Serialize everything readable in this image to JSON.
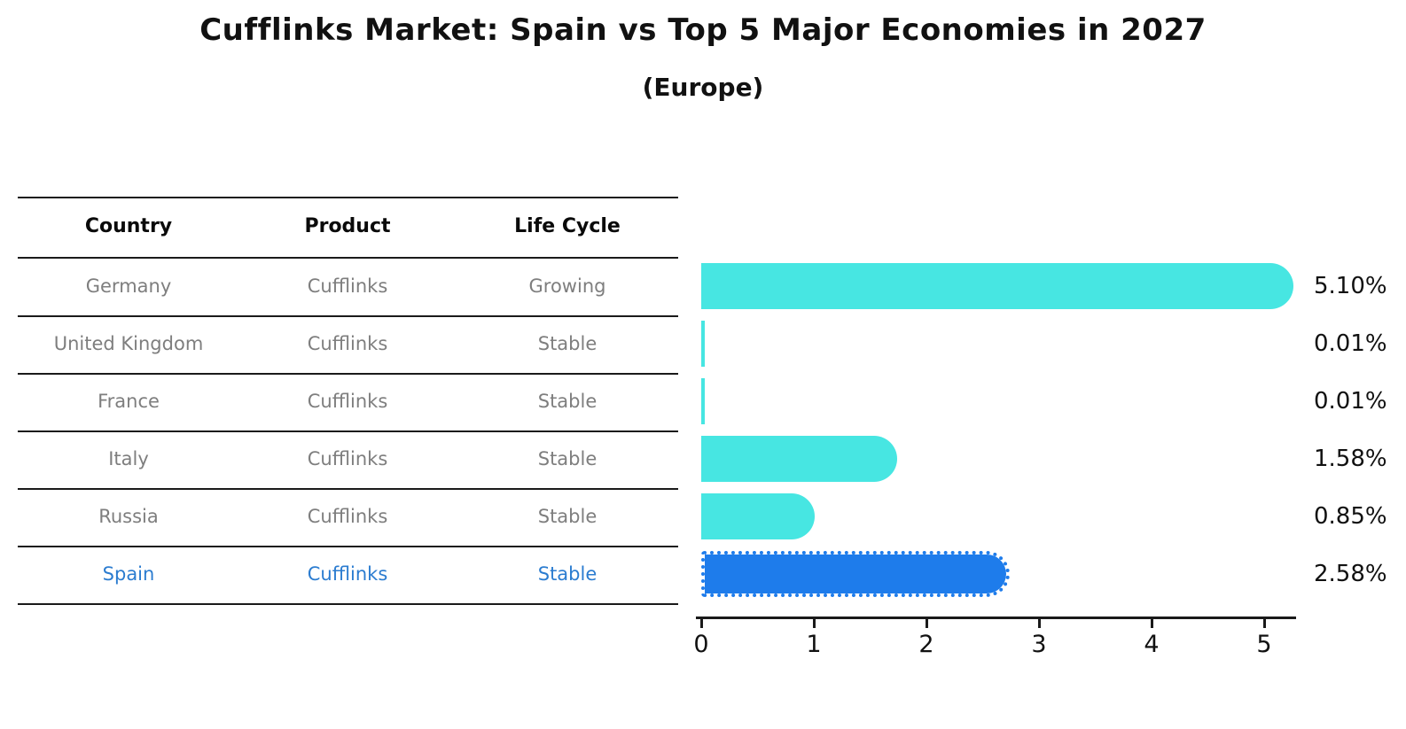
{
  "title": "Cufflinks Market: Spain vs Top 5 Major Economies in 2027",
  "subtitle": "(Europe)",
  "table": {
    "headers": [
      "Country",
      "Product",
      "Life Cycle"
    ],
    "rows": [
      {
        "country": "Germany",
        "product": "Cufflinks",
        "life_cycle": "Growing",
        "highlight": false
      },
      {
        "country": "United Kingdom",
        "product": "Cufflinks",
        "life_cycle": "Stable",
        "highlight": false
      },
      {
        "country": "France",
        "product": "Cufflinks",
        "life_cycle": "Stable",
        "highlight": false
      },
      {
        "country": "Italy",
        "product": "Cufflinks",
        "life_cycle": "Stable",
        "highlight": false
      },
      {
        "country": "Russia",
        "product": "Cufflinks",
        "life_cycle": "Stable",
        "highlight": false
      },
      {
        "country": "Spain",
        "product": "Cufflinks",
        "life_cycle": "Stable",
        "highlight": true
      }
    ]
  },
  "chart_data": {
    "type": "bar",
    "orientation": "horizontal",
    "title": "Cufflinks Market: Spain vs Top 5 Major Economies in 2027",
    "subtitle": "(Europe)",
    "categories": [
      "Germany",
      "United Kingdom",
      "France",
      "Italy",
      "Russia",
      "Spain"
    ],
    "values": [
      5.1,
      0.01,
      0.01,
      1.58,
      0.85,
      2.58
    ],
    "value_labels": [
      "5.10%",
      "0.01%",
      "0.01%",
      "1.58%",
      "0.85%",
      "2.58%"
    ],
    "highlight_category": "Spain",
    "xlabel": "",
    "ylabel": "",
    "xlim": [
      0,
      5.3
    ],
    "x_ticks": [
      "0",
      "1",
      "2",
      "3",
      "4",
      "5"
    ],
    "grid": false,
    "legend": false,
    "colors": {
      "bar_default": "#47e6e2",
      "bar_highlight": "#1e7ceb",
      "highlight_text": "#2b7cd0",
      "row_text": "#7e7e7e",
      "header_text": "#0a0a0a",
      "axis": "#1a1a1a"
    }
  }
}
